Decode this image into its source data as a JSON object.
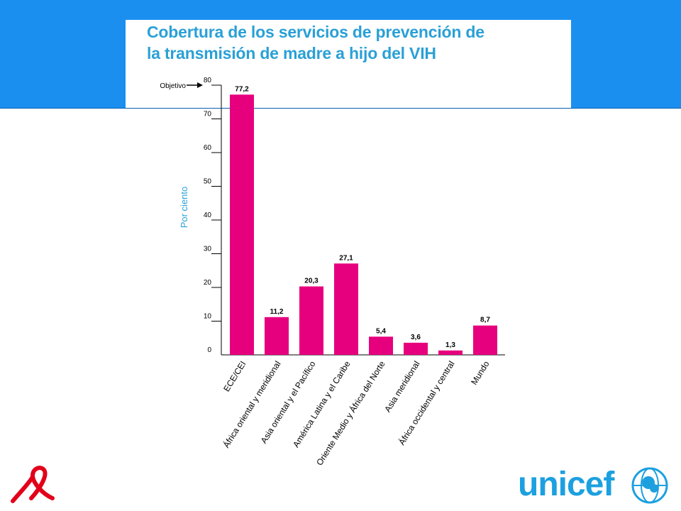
{
  "title": {
    "line1": "Cobertura de los servicios de prevención de",
    "line2": "la transmisión de madre a hijo del VIH"
  },
  "chart_data": {
    "type": "bar",
    "title": "Cobertura de los servicios de prevención de la transmisión de madre a hijo del VIH",
    "ylabel": "Por ciento",
    "xlabel": "",
    "ylim": [
      0,
      80
    ],
    "yticks": [
      0,
      10,
      20,
      30,
      40,
      50,
      60,
      70,
      80
    ],
    "target_label": "Objetivo",
    "target_value": 80,
    "categories": [
      "ECE/CEI",
      "África oriental y meridional",
      "Asia oriental y el Pacífico",
      "América Latina y el Caribe",
      "Oriente Medio y África del Norte",
      "Asia meridional",
      "África occidental y central",
      "Mundo"
    ],
    "values": [
      77.2,
      11.2,
      20.3,
      27.1,
      5.4,
      3.6,
      1.3,
      8.7
    ],
    "value_labels": [
      "77,2",
      "11,2",
      "20,3",
      "27,1",
      "5,4",
      "3,6",
      "1,3",
      "8,7"
    ],
    "bar_color": "#e6007e",
    "axis_label_color": "#2aa0d6",
    "grid": false
  },
  "footer": {
    "logo_text": "unicef",
    "logo_color": "#1ca0e0",
    "ribbon_color": "#e2001a",
    "ribbon_icon": "red-ribbon-icon",
    "emblem_icon": "unicef-emblem-icon"
  }
}
